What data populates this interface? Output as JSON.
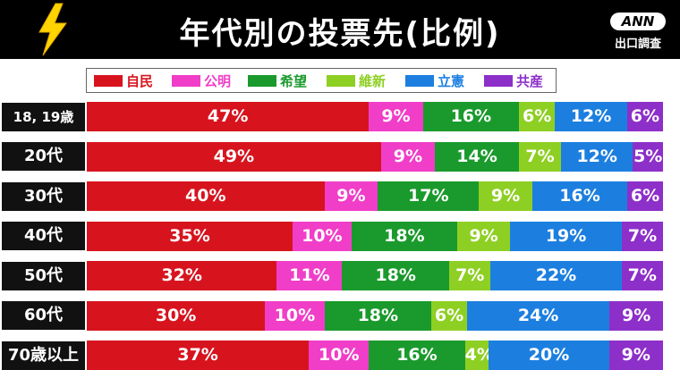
{
  "header": {
    "title": "年代別の投票先(比例)",
    "logo": "ANN",
    "source": "出口調査",
    "bolt_icon": "lightning-bolt-icon"
  },
  "chart_data": {
    "type": "bar",
    "orientation": "horizontal",
    "stacked": true,
    "categories": [
      "18, 19歳",
      "20代",
      "30代",
      "40代",
      "50代",
      "60代",
      "70歳以上"
    ],
    "series": [
      {
        "name": "自民",
        "color": "#d7141e",
        "values": [
          47,
          49,
          40,
          35,
          32,
          30,
          37
        ],
        "labels": [
          "47%",
          "49%",
          "40%",
          "35%",
          "32%",
          "30%",
          "37%"
        ]
      },
      {
        "name": "公明",
        "color": "#f03ec8",
        "values": [
          9,
          9,
          9,
          10,
          11,
          10,
          10
        ],
        "labels": [
          "9%",
          "9%",
          "9%",
          "10%",
          "11%",
          "10%",
          "10%"
        ]
      },
      {
        "name": "希望",
        "color": "#1a9a2c",
        "values": [
          16,
          14,
          17,
          18,
          18,
          18,
          16
        ],
        "labels": [
          "16%",
          "14%",
          "17%",
          "18%",
          "18%",
          "18%",
          "16%"
        ]
      },
      {
        "name": "維新",
        "color": "#8ecf23",
        "values": [
          6,
          7,
          9,
          9,
          7,
          6,
          4
        ],
        "labels": [
          "6%",
          "7%",
          "9%",
          "9%",
          "7%",
          "6%",
          "4%"
        ]
      },
      {
        "name": "立憲",
        "color": "#1c7fe0",
        "values": [
          12,
          12,
          16,
          19,
          22,
          24,
          20
        ],
        "labels": [
          "12%",
          "12%",
          "16%",
          "19%",
          "22%",
          "24%",
          "20%"
        ]
      },
      {
        "name": "共産",
        "color": "#8d2fc9",
        "values": [
          6,
          5,
          6,
          7,
          7,
          9,
          9
        ],
        "labels": [
          "6%",
          "5%",
          "6%",
          "7%",
          "7%",
          "9%",
          "9%"
        ]
      }
    ],
    "legend_position": "top"
  }
}
